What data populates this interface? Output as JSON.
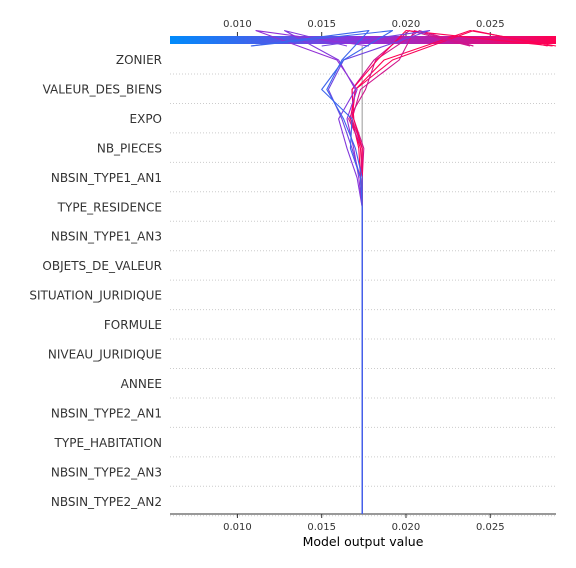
{
  "chart_data": {
    "type": "line",
    "title": "",
    "xlabel": "Model output value",
    "ylabel": "",
    "xlim": [
      0.006,
      0.0289
    ],
    "x_ticks": [
      0.01,
      0.015,
      0.02,
      0.025
    ],
    "x_tick_labels": [
      "0.010",
      "0.015",
      "0.020",
      "0.025"
    ],
    "base_value": 0.0174,
    "features": [
      "ZONIER",
      "VALEUR_DES_BIENS",
      "EXPO",
      "NB_PIECES",
      "NBSIN_TYPE1_AN1",
      "TYPE_RESIDENCE",
      "NBSIN_TYPE1_AN3",
      "OBJETS_DE_VALEUR",
      "SITUATION_JURIDIQUE",
      "FORMULE",
      "NIVEAU_JURIDIQUE",
      "ANNEE",
      "NBSIN_TYPE2_AN1",
      "TYPE_HABITATION",
      "NBSIN_TYPE2_AN3",
      "NBSIN_TYPE2_AN2"
    ],
    "colorbar": {
      "cmin": 0.006,
      "cmax": 0.0289,
      "color_low": "#008bfb",
      "color_mid": "#8f30d9",
      "color_high": "#ff0052"
    },
    "grid": true,
    "series": [
      {
        "values": [
          0.0174,
          0.0174,
          0.0174,
          0.0174,
          0.0174,
          0.0174,
          0.0174,
          0.0174,
          0.0174,
          0.0174,
          0.0174,
          0.0174,
          0.0173,
          0.0172,
          0.0168,
          0.017,
          0.0187,
          0.0238,
          0.0289
        ]
      },
      {
        "values": [
          0.0174,
          0.0174,
          0.0174,
          0.0174,
          0.0174,
          0.0174,
          0.0174,
          0.0174,
          0.0174,
          0.0174,
          0.0174,
          0.0174,
          0.0174,
          0.0173,
          0.0167,
          0.017,
          0.0192,
          0.024,
          0.0284
        ]
      },
      {
        "values": [
          0.0174,
          0.0174,
          0.0174,
          0.0174,
          0.0174,
          0.0174,
          0.0174,
          0.0174,
          0.0174,
          0.0174,
          0.0174,
          0.0174,
          0.0174,
          0.0174,
          0.0168,
          0.0173,
          0.0196,
          0.0205,
          0.024
        ]
      },
      {
        "values": [
          0.0174,
          0.0174,
          0.0174,
          0.0174,
          0.0174,
          0.0174,
          0.0174,
          0.0174,
          0.0174,
          0.0174,
          0.0174,
          0.0174,
          0.0173,
          0.0174,
          0.0166,
          0.0176,
          0.0182,
          0.0208,
          0.024
        ]
      },
      {
        "values": [
          0.0174,
          0.0174,
          0.0174,
          0.0174,
          0.0174,
          0.0174,
          0.0174,
          0.0174,
          0.0174,
          0.0174,
          0.0174,
          0.0174,
          0.0174,
          0.0175,
          0.0169,
          0.0168,
          0.0181,
          0.0202,
          0.0238
        ]
      },
      {
        "values": [
          0.0174,
          0.0174,
          0.0174,
          0.0174,
          0.0174,
          0.0174,
          0.0174,
          0.0174,
          0.0174,
          0.0174,
          0.0174,
          0.0174,
          0.0174,
          0.0174,
          0.0169,
          0.0168,
          0.0183,
          0.02,
          0.0287
        ]
      },
      {
        "values": [
          0.0174,
          0.0174,
          0.0174,
          0.0174,
          0.0174,
          0.0174,
          0.0174,
          0.0174,
          0.0174,
          0.0174,
          0.0174,
          0.0174,
          0.0171,
          0.0165,
          0.016,
          0.017,
          0.016,
          0.0128,
          0.0165
        ]
      },
      {
        "values": [
          0.0174,
          0.0174,
          0.0174,
          0.0174,
          0.0174,
          0.0174,
          0.0174,
          0.0174,
          0.0174,
          0.0174,
          0.0174,
          0.0174,
          0.0173,
          0.0168,
          0.0162,
          0.0154,
          0.0163,
          0.0214,
          0.015
        ]
      },
      {
        "values": [
          0.0174,
          0.0174,
          0.0174,
          0.0174,
          0.0174,
          0.0174,
          0.0174,
          0.0174,
          0.0174,
          0.0174,
          0.0174,
          0.0174,
          0.0172,
          0.0169,
          0.0165,
          0.0171,
          0.0159,
          0.0111,
          0.0178
        ]
      },
      {
        "values": [
          0.0174,
          0.0174,
          0.0174,
          0.0174,
          0.0174,
          0.0174,
          0.0174,
          0.0174,
          0.0174,
          0.0174,
          0.0174,
          0.0174,
          0.0173,
          0.0167,
          0.0168,
          0.015,
          0.0163,
          0.0192,
          0.0108
        ]
      },
      {
        "values": [
          0.0174,
          0.0174,
          0.0174,
          0.0174,
          0.0174,
          0.0174,
          0.0174,
          0.0174,
          0.0174,
          0.0174,
          0.0174,
          0.0174,
          0.0174,
          0.017,
          0.0163,
          0.0153,
          0.0162,
          0.0178,
          0.0108
        ]
      }
    ]
  }
}
